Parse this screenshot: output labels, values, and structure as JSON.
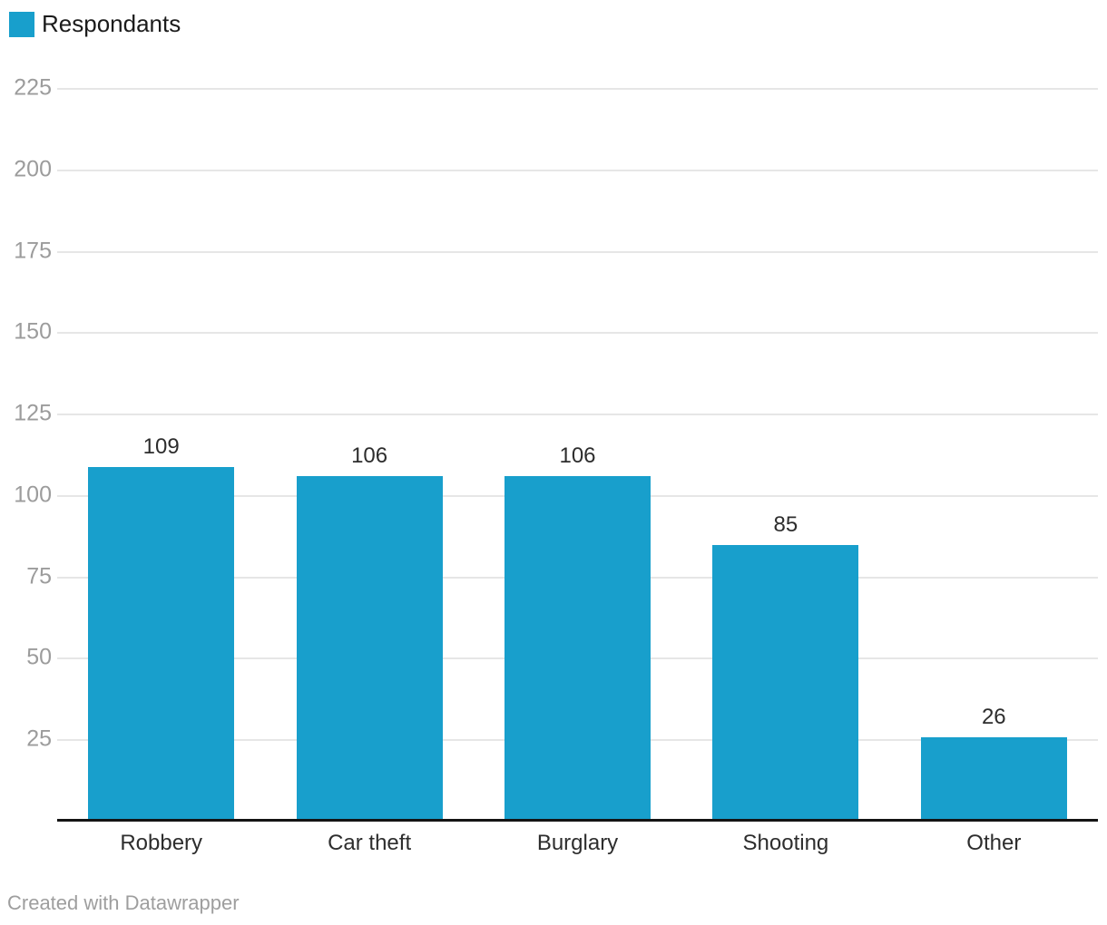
{
  "legend": {
    "label": "Respondants",
    "swatch_color": "#189fcc"
  },
  "footer": {
    "attribution": "Created with Datawrapper"
  },
  "chart_data": {
    "type": "bar",
    "title": "",
    "categories": [
      "Robbery",
      "Car theft",
      "Burglary",
      "Shooting",
      "Other"
    ],
    "values": [
      109,
      106,
      106,
      85,
      26
    ],
    "series_name": "Respondants",
    "bar_color": "#189fcc",
    "xlabel": "",
    "ylabel": "",
    "ylim": [
      0,
      225
    ],
    "ytick_step": 25,
    "yticks": [
      225,
      200,
      175,
      150,
      125,
      100,
      75,
      50,
      25
    ],
    "grid": true,
    "grid_color": "#e6e6e6",
    "axis_line_color": "#141414",
    "tick_label_color": "#9c9c9c",
    "value_labels_shown": true,
    "legend_position": "top-left"
  }
}
